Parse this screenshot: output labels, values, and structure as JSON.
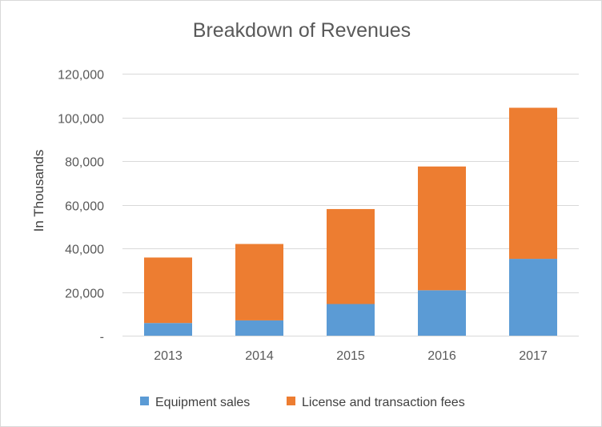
{
  "chart_data": {
    "type": "bar",
    "stacked": true,
    "title": "Breakdown of Revenues",
    "xlabel": "",
    "ylabel": "In Thousands",
    "categories": [
      "2013",
      "2014",
      "2015",
      "2016",
      "2017"
    ],
    "series": [
      {
        "name": "Equipment sales",
        "color": "#5b9bd5",
        "values": [
          5800,
          7000,
          14500,
          20800,
          35200
        ]
      },
      {
        "name": "License and transaction fees",
        "color": "#ed7d31",
        "values": [
          30000,
          35000,
          43500,
          56700,
          69200
        ]
      }
    ],
    "ylim": [
      0,
      120000
    ],
    "ytick_values": [
      0,
      20000,
      40000,
      60000,
      80000,
      100000,
      120000
    ],
    "ytick_labels": [
      "-",
      "20,000",
      "40,000",
      "60,000",
      "80,000",
      "100,000",
      "120,000"
    ],
    "grid": true,
    "legend_position": "bottom"
  }
}
